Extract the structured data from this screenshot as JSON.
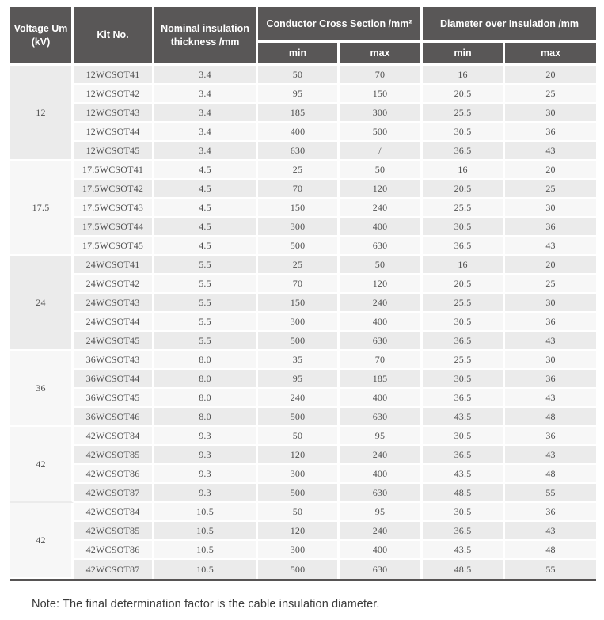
{
  "table": {
    "header": {
      "col_voltage": "Voltage Um (kV)",
      "col_kit": "Kit No.",
      "col_nominal": "Nominal insulation thickness /mm",
      "col_conductor": "Conductor Cross Section /mm²",
      "col_diameter": "Diameter over Insulation /mm",
      "sub_min": "min",
      "sub_max": "max"
    },
    "column_cell_names": [
      "kit-no-cell",
      "nominal-thickness-cell",
      "conductor-min-cell",
      "conductor-max-cell",
      "diameter-min-cell",
      "diameter-max-cell"
    ],
    "groups": [
      {
        "voltage": "12",
        "rows": [
          [
            "12WCSOT41",
            "3.4",
            "50",
            "70",
            "16",
            "20"
          ],
          [
            "12WCSOT42",
            "3.4",
            "95",
            "150",
            "20.5",
            "25"
          ],
          [
            "12WCSOT43",
            "3.4",
            "185",
            "300",
            "25.5",
            "30"
          ],
          [
            "12WCSOT44",
            "3.4",
            "400",
            "500",
            "30.5",
            "36"
          ],
          [
            "12WCSOT45",
            "3.4",
            "630",
            "/",
            "36.5",
            "43"
          ]
        ]
      },
      {
        "voltage": "17.5",
        "rows": [
          [
            "17.5WCSOT41",
            "4.5",
            "25",
            "50",
            "16",
            "20"
          ],
          [
            "17.5WCSOT42",
            "4.5",
            "70",
            "120",
            "20.5",
            "25"
          ],
          [
            "17.5WCSOT43",
            "4.5",
            "150",
            "240",
            "25.5",
            "30"
          ],
          [
            "17.5WCSOT44",
            "4.5",
            "300",
            "400",
            "30.5",
            "36"
          ],
          [
            "17.5WCSOT45",
            "4.5",
            "500",
            "630",
            "36.5",
            "43"
          ]
        ]
      },
      {
        "voltage": "24",
        "rows": [
          [
            "24WCSOT41",
            "5.5",
            "25",
            "50",
            "16",
            "20"
          ],
          [
            "24WCSOT42",
            "5.5",
            "70",
            "120",
            "20.5",
            "25"
          ],
          [
            "24WCSOT43",
            "5.5",
            "150",
            "240",
            "25.5",
            "30"
          ],
          [
            "24WCSOT44",
            "5.5",
            "300",
            "400",
            "30.5",
            "36"
          ],
          [
            "24WCSOT45",
            "5.5",
            "500",
            "630",
            "36.5",
            "43"
          ]
        ]
      },
      {
        "voltage": "36",
        "rows": [
          [
            "36WCSOT43",
            "8.0",
            "35",
            "70",
            "25.5",
            "30"
          ],
          [
            "36WCSOT44",
            "8.0",
            "95",
            "185",
            "30.5",
            "36"
          ],
          [
            "36WCSOT45",
            "8.0",
            "240",
            "400",
            "36.5",
            "43"
          ],
          [
            "36WCSOT46",
            "8.0",
            "500",
            "630",
            "43.5",
            "48"
          ]
        ]
      },
      {
        "voltage": "42",
        "rows": [
          [
            "42WCSOT84",
            "9.3",
            "50",
            "95",
            "30.5",
            "36"
          ],
          [
            "42WCSOT85",
            "9.3",
            "120",
            "240",
            "36.5",
            "43"
          ],
          [
            "42WCSOT86",
            "9.3",
            "300",
            "400",
            "43.5",
            "48"
          ],
          [
            "42WCSOT87",
            "9.3",
            "500",
            "630",
            "48.5",
            "55"
          ]
        ]
      },
      {
        "voltage": "42",
        "rows": [
          [
            "42WCSOT84",
            "10.5",
            "50",
            "95",
            "30.5",
            "36"
          ],
          [
            "42WCSOT85",
            "10.5",
            "120",
            "240",
            "36.5",
            "43"
          ],
          [
            "42WCSOT86",
            "10.5",
            "300",
            "400",
            "43.5",
            "48"
          ],
          [
            "42WCSOT87",
            "10.5",
            "500",
            "630",
            "48.5",
            "55"
          ]
        ]
      }
    ]
  },
  "note": "Note: The final determination factor is the cable insulation diameter.",
  "colors": {
    "header_bg": "#595757",
    "header_text": "#ffffff",
    "row_dark": "#ebebeb",
    "row_light": "#f7f7f7",
    "body_text": "#4f4f4f",
    "bottom_rule": "#565353"
  }
}
